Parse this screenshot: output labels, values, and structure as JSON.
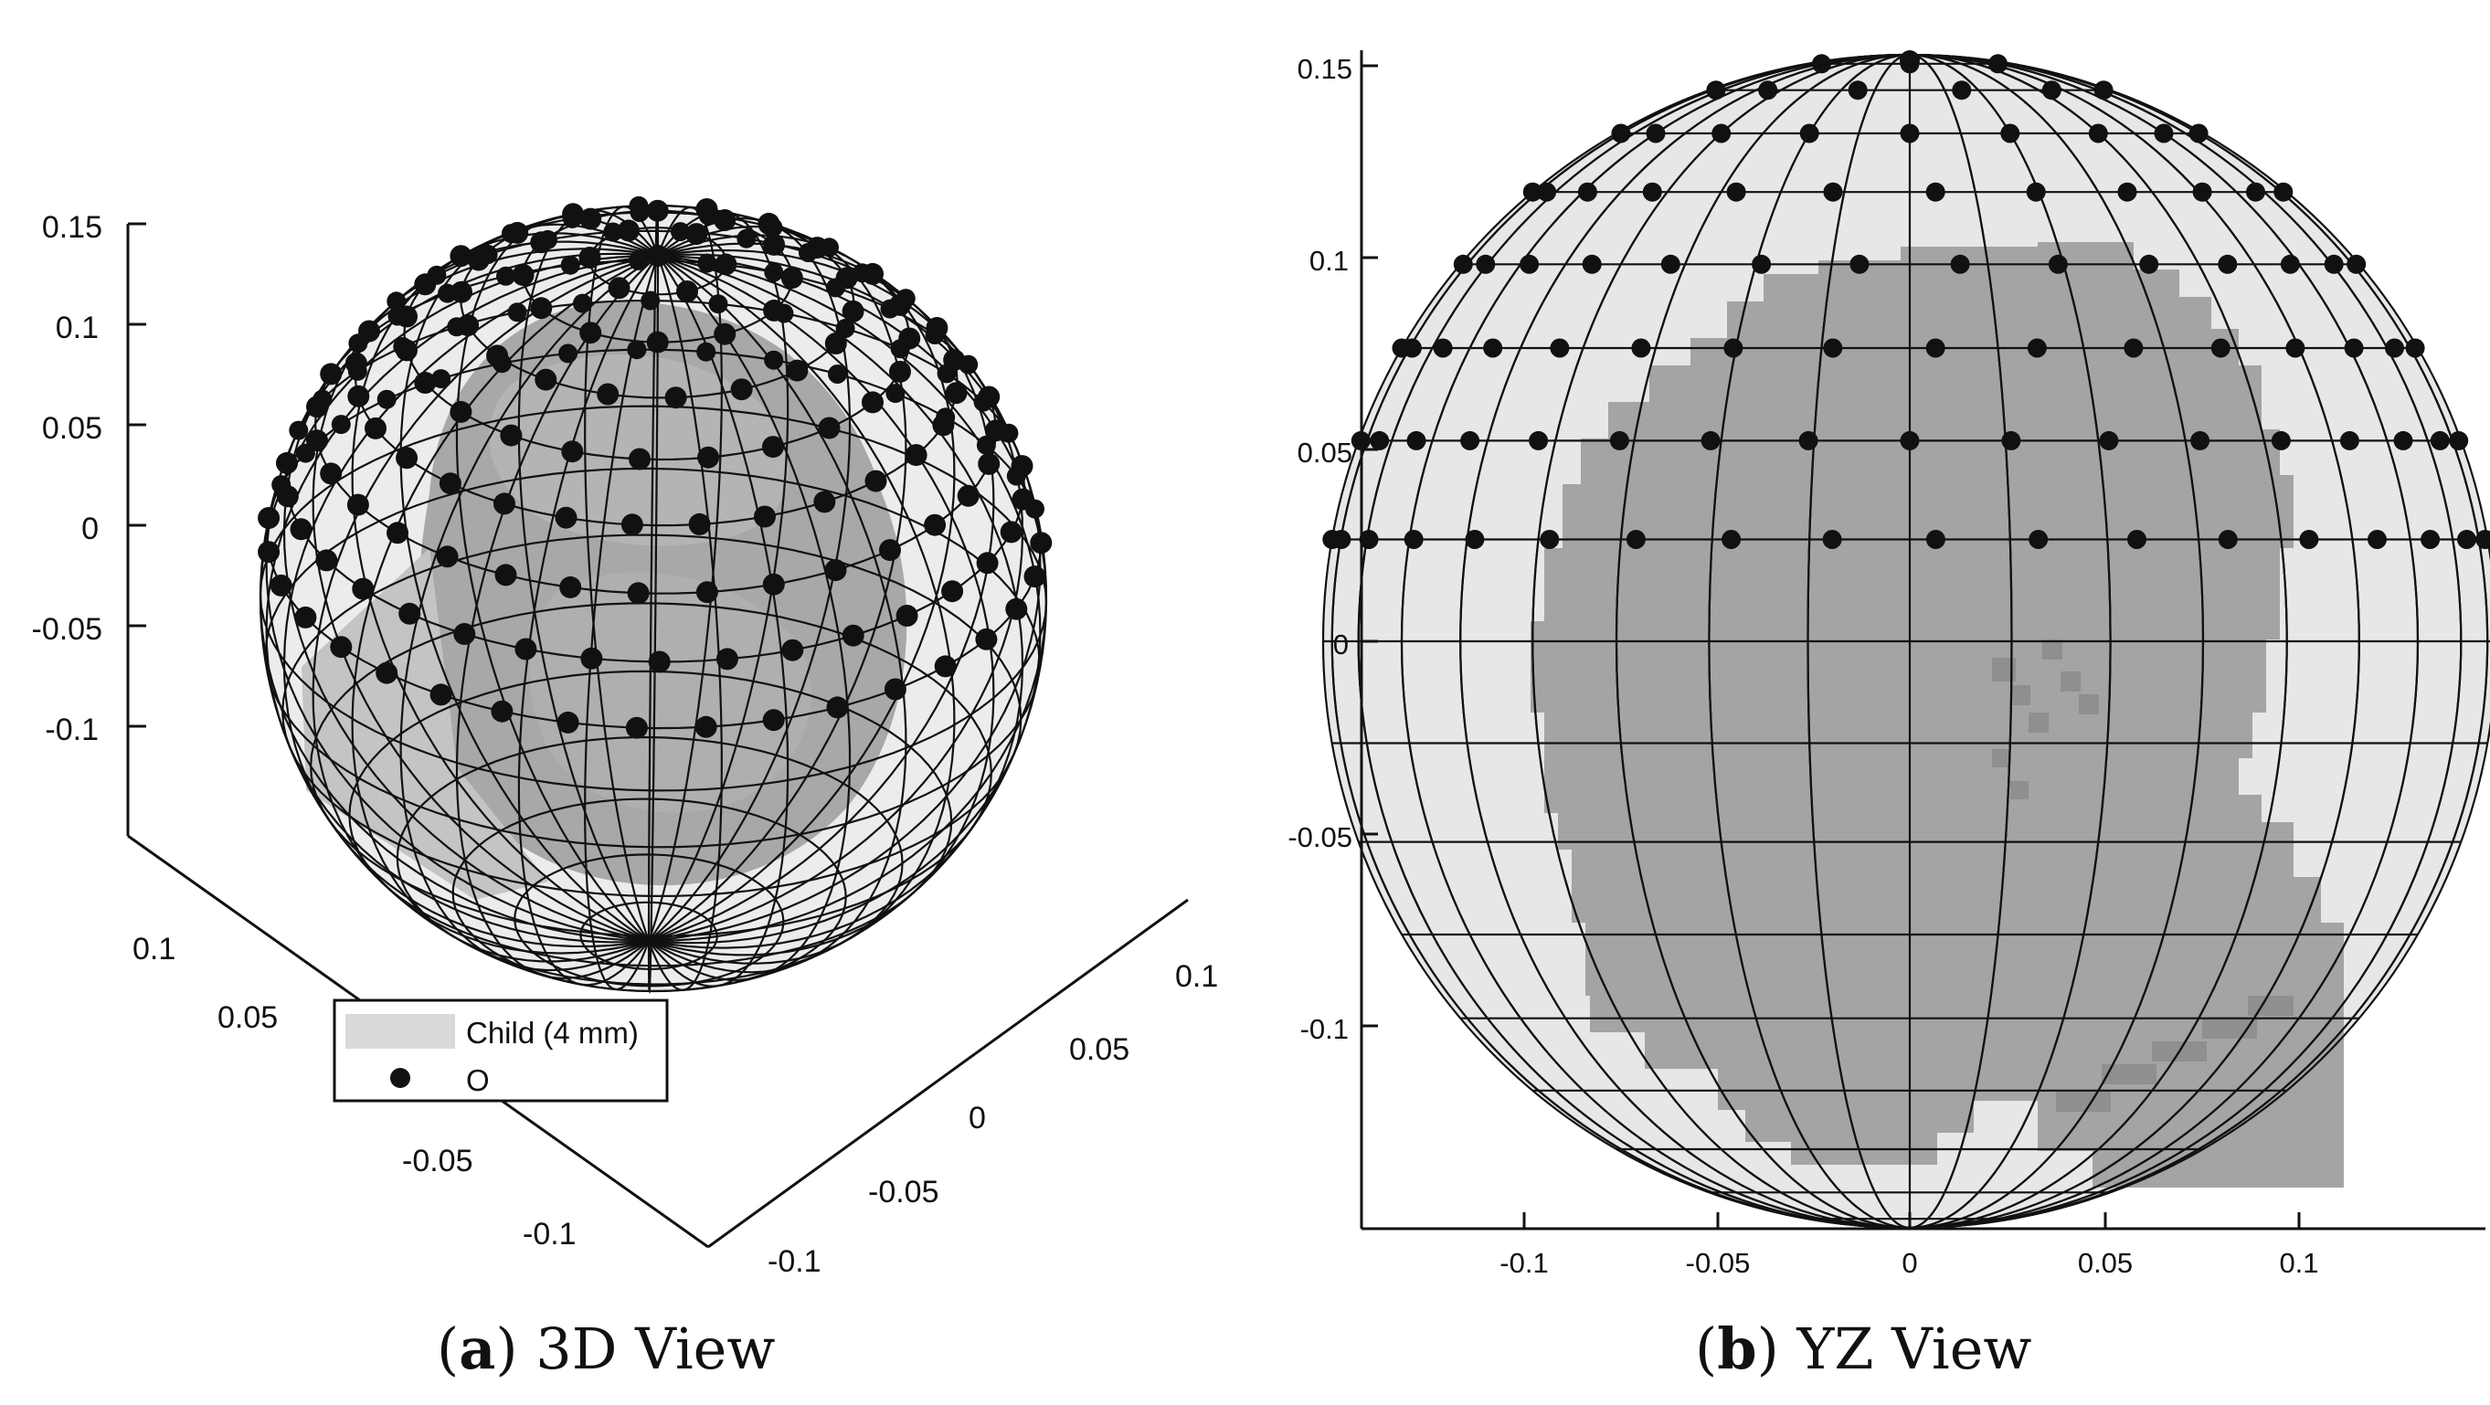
{
  "panel_a": {
    "caption_letter": "a",
    "caption_text": "3D View",
    "z_ticks": [
      "0.15",
      "0.1",
      "0.05",
      "0",
      "-0.05",
      "-0.1"
    ],
    "y_ticks": [
      "0.1",
      "0.05",
      "0",
      "-0.05",
      "-0.1"
    ],
    "x_ticks": [
      "0.1",
      "0.05",
      "0",
      "-0.05",
      "-0.1"
    ],
    "legend": {
      "entries": [
        {
          "label": "Child (4 mm)",
          "kind": "patch",
          "color": "#d9d9d9"
        },
        {
          "label": "O",
          "kind": "marker",
          "color": "#111111"
        }
      ]
    }
  },
  "panel_b": {
    "caption_letter": "b",
    "caption_text": "YZ View",
    "y_ticks": [
      "0.15",
      "0.1",
      "0.05",
      "0",
      "-0.05",
      "-0.1"
    ],
    "x_ticks": [
      "-0.1",
      "-0.05",
      "0",
      "0.05",
      "0.1"
    ]
  },
  "colors": {
    "sphere_fill": "#e6e7e9",
    "head_fill": "#a4a4a4",
    "wire": "#111111",
    "electrode": "#111111"
  }
}
